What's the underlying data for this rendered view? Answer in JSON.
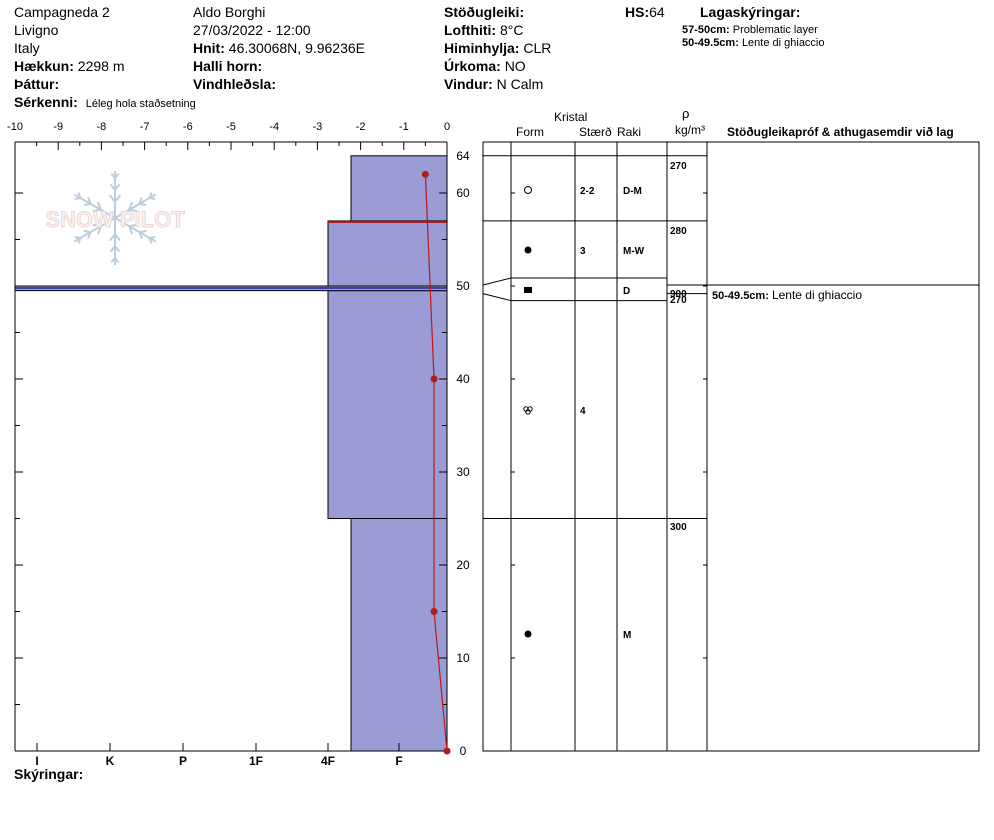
{
  "header": {
    "location": "Campagneda 2",
    "region": "Livigno",
    "country": "Italy",
    "elevation_label": "Hækkun:",
    "elevation_value": "2298 m",
    "aspect_label": "Þáttur:",
    "observer": "Aldo Borghi",
    "datetime": "27/03/2022 - 12:00",
    "coords_label": "Hnit:",
    "coords_value": "46.30068N, 9.96236E",
    "slope_label": "Halli horn:",
    "wind_loading_label": "Vindhleðsla:",
    "stability_label": "Stöðugleiki:",
    "air_temp_label": "Lofthiti:",
    "air_temp_value": "8°C",
    "sky_label": "Himinhylja:",
    "sky_value": "CLR",
    "precip_label": "Úrkoma:",
    "precip_value": "NO",
    "wind_label": "Vindur:",
    "wind_value": "N Calm",
    "hs_label": "HS:",
    "hs_value": "64",
    "layer_notes_title": "Lagaskýringar:",
    "layer_notes": [
      {
        "depth": "57-50cm:",
        "text": "Problematic layer"
      },
      {
        "depth": "50-49.5cm:",
        "text": "Lente di ghiaccio"
      }
    ],
    "remarks_label": "Sérkenni:",
    "remarks_value": "Léleg hola staðsetning",
    "legend_label": "Skýringar:"
  },
  "logo_text": "SNOW PILOT",
  "columns": {
    "crystal": "Kristal",
    "form": "Form",
    "size": "Stærð",
    "moisture": "Raki",
    "rho": "ρ",
    "density_unit": "kg/m³",
    "comments": "Stöðugleikapróf & athugasemdir við lag"
  },
  "chart_data": {
    "type": "snow-profile",
    "temp_axis": {
      "range": [
        -10,
        0
      ],
      "ticks": [
        "-10",
        "-9",
        "-8",
        "-7",
        "-6",
        "-5",
        "-4",
        "-3",
        "-2",
        "-1",
        "0"
      ]
    },
    "height_axis": {
      "range": [
        0,
        64
      ],
      "ticks": [
        "0",
        "10",
        "20",
        "30",
        "40",
        "50",
        "60",
        "64"
      ]
    },
    "hardness_axis": {
      "labels": [
        "I",
        "K",
        "P",
        "1F",
        "4F",
        "F"
      ]
    },
    "hardness_layers": [
      {
        "bottom": 0,
        "top": 25,
        "hardness": "1F"
      },
      {
        "bottom": 25,
        "top": 49.5,
        "hardness": "4F"
      },
      {
        "bottom": 49.5,
        "top": 50,
        "hardness": "I"
      },
      {
        "bottom": 50,
        "top": 57,
        "hardness": "P"
      },
      {
        "bottom": 57,
        "top": 64,
        "hardness": "1F"
      }
    ],
    "temperature_profile": [
      {
        "height": 62,
        "temp": -0.5
      },
      {
        "height": 40,
        "temp": -0.3
      },
      {
        "height": 15,
        "temp": -0.3
      },
      {
        "height": 0,
        "temp": 0
      }
    ],
    "layer_boundaries": [
      64,
      57,
      50,
      49.5,
      25,
      0
    ],
    "crystal_rows": [
      {
        "bottom": 57,
        "top": 64,
        "form_icon": "circle-open-icon",
        "size": "2-2",
        "moisture": "D-M"
      },
      {
        "bottom": 50,
        "top": 57,
        "form_icon": "circle-filled-icon",
        "size": "3",
        "moisture": "M-W"
      },
      {
        "bottom": 49.5,
        "top": 50,
        "form_icon": "square-filled-icon",
        "size": "",
        "moisture": "D"
      },
      {
        "bottom": 25,
        "top": 49.5,
        "form_icon": "clustered-rounds-icon",
        "size": "4",
        "moisture": ""
      },
      {
        "bottom": 0,
        "top": 25,
        "form_icon": "circle-filled-icon",
        "size": "",
        "moisture": "M"
      }
    ],
    "density": [
      {
        "height": 62,
        "value": "270"
      },
      {
        "height": 55,
        "value": "280"
      },
      {
        "height": 49.7,
        "value": "900"
      },
      {
        "height": 49.5,
        "value": "270"
      },
      {
        "height": 24,
        "value": "300"
      }
    ],
    "comments": [
      {
        "height": 49.8,
        "depth": "50-49.5cm:",
        "text": "Lente di ghiaccio"
      }
    ]
  }
}
